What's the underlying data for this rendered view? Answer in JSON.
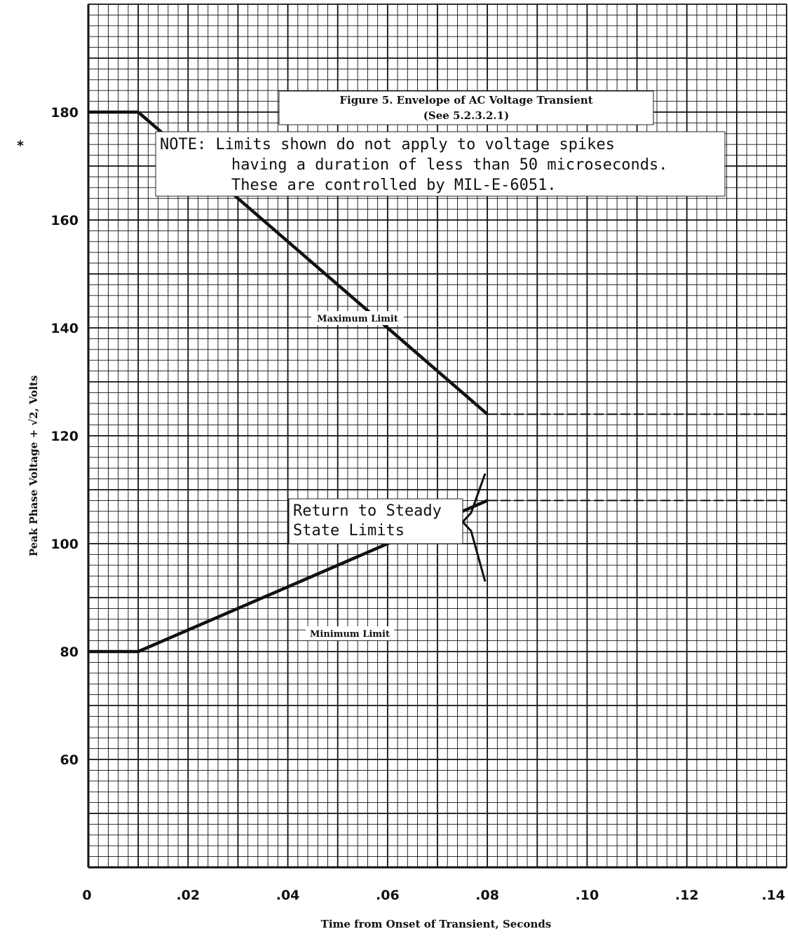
{
  "chart_data": {
    "type": "line",
    "title": "Figure 5.  Envelope of AC Voltage Transient",
    "subtitle": "(See 5.2.3.2.1)",
    "note": [
      "NOTE:  Limits shown do not apply to voltage spikes",
      "having a duration of less than 50 microseconds.",
      "These are controlled by MIL-E-6051."
    ],
    "asterisk": "*",
    "xlabel": "Time from Onset of Transient, Seconds",
    "ylabel": "Peak Phase Voltage + √2, Volts",
    "xlim": [
      0,
      0.14
    ],
    "ylim": [
      40,
      200
    ],
    "x_ticks": [
      0,
      0.02,
      0.04,
      0.06,
      0.08,
      0.1,
      0.12,
      0.14
    ],
    "x_tick_labels": [
      "0",
      ".02",
      ".04",
      ".06",
      ".08",
      ".10",
      ".12",
      ".14"
    ],
    "y_ticks": [
      60,
      80,
      100,
      120,
      140,
      160,
      180
    ],
    "y_tick_labels": [
      "60",
      "80",
      "100",
      "120",
      "140",
      "160",
      "180"
    ],
    "grid": true,
    "series": [
      {
        "name": "Maximum Limit",
        "x": [
          0,
          0.01,
          0.08,
          0.14
        ],
        "y": [
          180,
          180,
          124,
          124
        ],
        "style": [
          "solid",
          "solid",
          "dashed"
        ]
      },
      {
        "name": "Minimum Limit",
        "x": [
          0,
          0.01,
          0.08,
          0.14
        ],
        "y": [
          80,
          80,
          108,
          108
        ],
        "style": [
          "solid",
          "solid",
          "dashed"
        ]
      }
    ],
    "annotations": {
      "callout": [
        "Return to Steady",
        "State Limits"
      ]
    }
  }
}
